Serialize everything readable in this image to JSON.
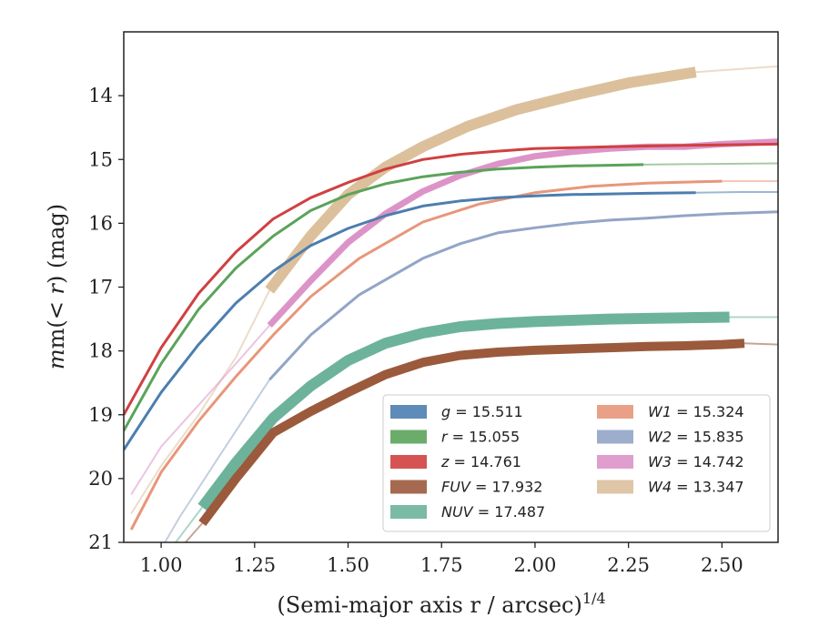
{
  "chart_data": {
    "type": "line",
    "xlabel": "(Semi-major axis r / arcsec)",
    "xlabel_exponent": "1/4",
    "ylabel_prefix": "m(",
    "ylabel_var": "< r",
    "ylabel_suffix": ") (mag)",
    "xlim": [
      0.9,
      2.65
    ],
    "ylim": [
      21.0,
      13.0
    ],
    "y_inverted": true,
    "xticks": [
      1.0,
      1.25,
      1.5,
      1.75,
      2.0,
      2.25,
      2.5
    ],
    "xtick_labels": [
      "1.00",
      "1.25",
      "1.50",
      "1.75",
      "2.00",
      "2.25",
      "2.50"
    ],
    "yticks": [
      14,
      15,
      16,
      17,
      18,
      19,
      20,
      21
    ],
    "ytick_labels": [
      "14",
      "15",
      "16",
      "17",
      "18",
      "19",
      "20",
      "21"
    ],
    "grid": false,
    "legend_placement": "lower-right",
    "series": [
      {
        "name": "g",
        "value": "15.511",
        "color": "#4c7eaf",
        "width": 3,
        "data_end": 2.43,
        "x": [
          0.9,
          1.0,
          1.1,
          1.2,
          1.3,
          1.4,
          1.5,
          1.6,
          1.7,
          1.8,
          1.9,
          2.0,
          2.1,
          2.2,
          2.3,
          2.43,
          2.55,
          2.65
        ],
        "y": [
          19.55,
          18.65,
          17.9,
          17.25,
          16.75,
          16.35,
          16.08,
          15.88,
          15.73,
          15.65,
          15.6,
          15.57,
          15.55,
          15.54,
          15.53,
          15.52,
          15.51,
          15.51
        ]
      },
      {
        "name": "r",
        "value": "15.055",
        "color": "#5ba35a",
        "width": 3,
        "data_end": 2.29,
        "x": [
          0.9,
          1.0,
          1.1,
          1.2,
          1.3,
          1.4,
          1.5,
          1.6,
          1.7,
          1.8,
          1.9,
          2.0,
          2.1,
          2.2,
          2.29,
          2.45,
          2.65
        ],
        "y": [
          19.25,
          18.2,
          17.35,
          16.7,
          16.2,
          15.8,
          15.55,
          15.38,
          15.27,
          15.2,
          15.15,
          15.12,
          15.1,
          15.09,
          15.08,
          15.07,
          15.06
        ]
      },
      {
        "name": "z",
        "value": "14.761",
        "color": "#d04040",
        "width": 3,
        "data_end": 2.65,
        "x": [
          0.9,
          1.0,
          1.1,
          1.2,
          1.3,
          1.4,
          1.5,
          1.6,
          1.7,
          1.8,
          1.9,
          2.0,
          2.2,
          2.4,
          2.65
        ],
        "y": [
          19.0,
          17.95,
          17.1,
          16.45,
          15.93,
          15.6,
          15.36,
          15.15,
          15.0,
          14.92,
          14.87,
          14.83,
          14.8,
          14.78,
          14.76
        ]
      },
      {
        "name": "FUV",
        "value": "17.932",
        "color": "#9b5a3c",
        "width": 10,
        "data_start": 1.11,
        "data_end": 2.56,
        "x": [
          1.02,
          1.11,
          1.2,
          1.3,
          1.4,
          1.5,
          1.6,
          1.7,
          1.8,
          1.9,
          2.0,
          2.1,
          2.2,
          2.3,
          2.4,
          2.5,
          2.56,
          2.65
        ],
        "y": [
          21.3,
          20.7,
          20.0,
          19.28,
          18.95,
          18.65,
          18.37,
          18.18,
          18.07,
          18.02,
          17.99,
          17.97,
          17.95,
          17.93,
          17.92,
          17.9,
          17.88,
          17.9
        ]
      },
      {
        "name": "NUV",
        "value": "17.487",
        "color": "#6db39b",
        "width": 12,
        "data_start": 1.11,
        "data_end": 2.52,
        "x": [
          1.0,
          1.11,
          1.2,
          1.3,
          1.4,
          1.5,
          1.6,
          1.7,
          1.8,
          1.9,
          2.0,
          2.1,
          2.2,
          2.3,
          2.4,
          2.52,
          2.65
        ],
        "y": [
          21.3,
          20.45,
          19.75,
          19.05,
          18.55,
          18.15,
          17.88,
          17.72,
          17.62,
          17.57,
          17.54,
          17.52,
          17.5,
          17.49,
          17.48,
          17.47,
          17.47
        ]
      },
      {
        "name": "W1",
        "value": "15.324",
        "color": "#e8967a",
        "width": 3,
        "data_end": 2.5,
        "x": [
          0.92,
          1.0,
          1.1,
          1.2,
          1.3,
          1.4,
          1.53,
          1.7,
          1.85,
          2.0,
          2.15,
          2.3,
          2.5,
          2.65
        ],
        "y": [
          20.8,
          19.9,
          19.1,
          18.4,
          17.75,
          17.15,
          16.55,
          15.98,
          15.7,
          15.52,
          15.42,
          15.37,
          15.34,
          15.34
        ]
      },
      {
        "name": "W2",
        "value": "15.835",
        "color": "#92a5c6",
        "width": 3,
        "data_start": 1.29,
        "data_end": 2.65,
        "x": [
          0.98,
          1.05,
          1.15,
          1.29,
          1.4,
          1.53,
          1.7,
          1.8,
          1.9,
          2.0,
          2.1,
          2.2,
          2.3,
          2.4,
          2.5,
          2.65
        ],
        "y": [
          21.3,
          20.6,
          19.7,
          18.45,
          17.75,
          17.12,
          16.55,
          16.32,
          16.15,
          16.07,
          16.0,
          15.95,
          15.92,
          15.88,
          15.85,
          15.82
        ]
      },
      {
        "name": "W3",
        "value": "14.742",
        "color": "#dc94c8",
        "width": 7,
        "data_start": 1.29,
        "data_end": 2.65,
        "x": [
          0.92,
          1.0,
          1.1,
          1.2,
          1.29,
          1.4,
          1.5,
          1.6,
          1.7,
          1.8,
          1.9,
          2.0,
          2.1,
          2.2,
          2.3,
          2.4,
          2.5,
          2.65
        ],
        "y": [
          20.25,
          19.5,
          18.85,
          18.2,
          17.6,
          16.9,
          16.3,
          15.85,
          15.5,
          15.25,
          15.07,
          14.95,
          14.88,
          14.83,
          14.8,
          14.8,
          14.76,
          14.72
        ]
      },
      {
        "name": "W4",
        "value": "13.347",
        "color": "#dcc09c",
        "width": 12,
        "data_start": 1.29,
        "data_end": 2.43,
        "x": [
          0.92,
          1.0,
          1.1,
          1.2,
          1.29,
          1.4,
          1.5,
          1.6,
          1.7,
          1.82,
          1.95,
          2.1,
          2.25,
          2.43,
          2.55,
          2.65
        ],
        "y": [
          20.55,
          19.8,
          19.0,
          18.1,
          17.05,
          16.2,
          15.55,
          15.12,
          14.8,
          14.48,
          14.22,
          14.0,
          13.8,
          13.63,
          13.58,
          13.54
        ]
      }
    ]
  }
}
